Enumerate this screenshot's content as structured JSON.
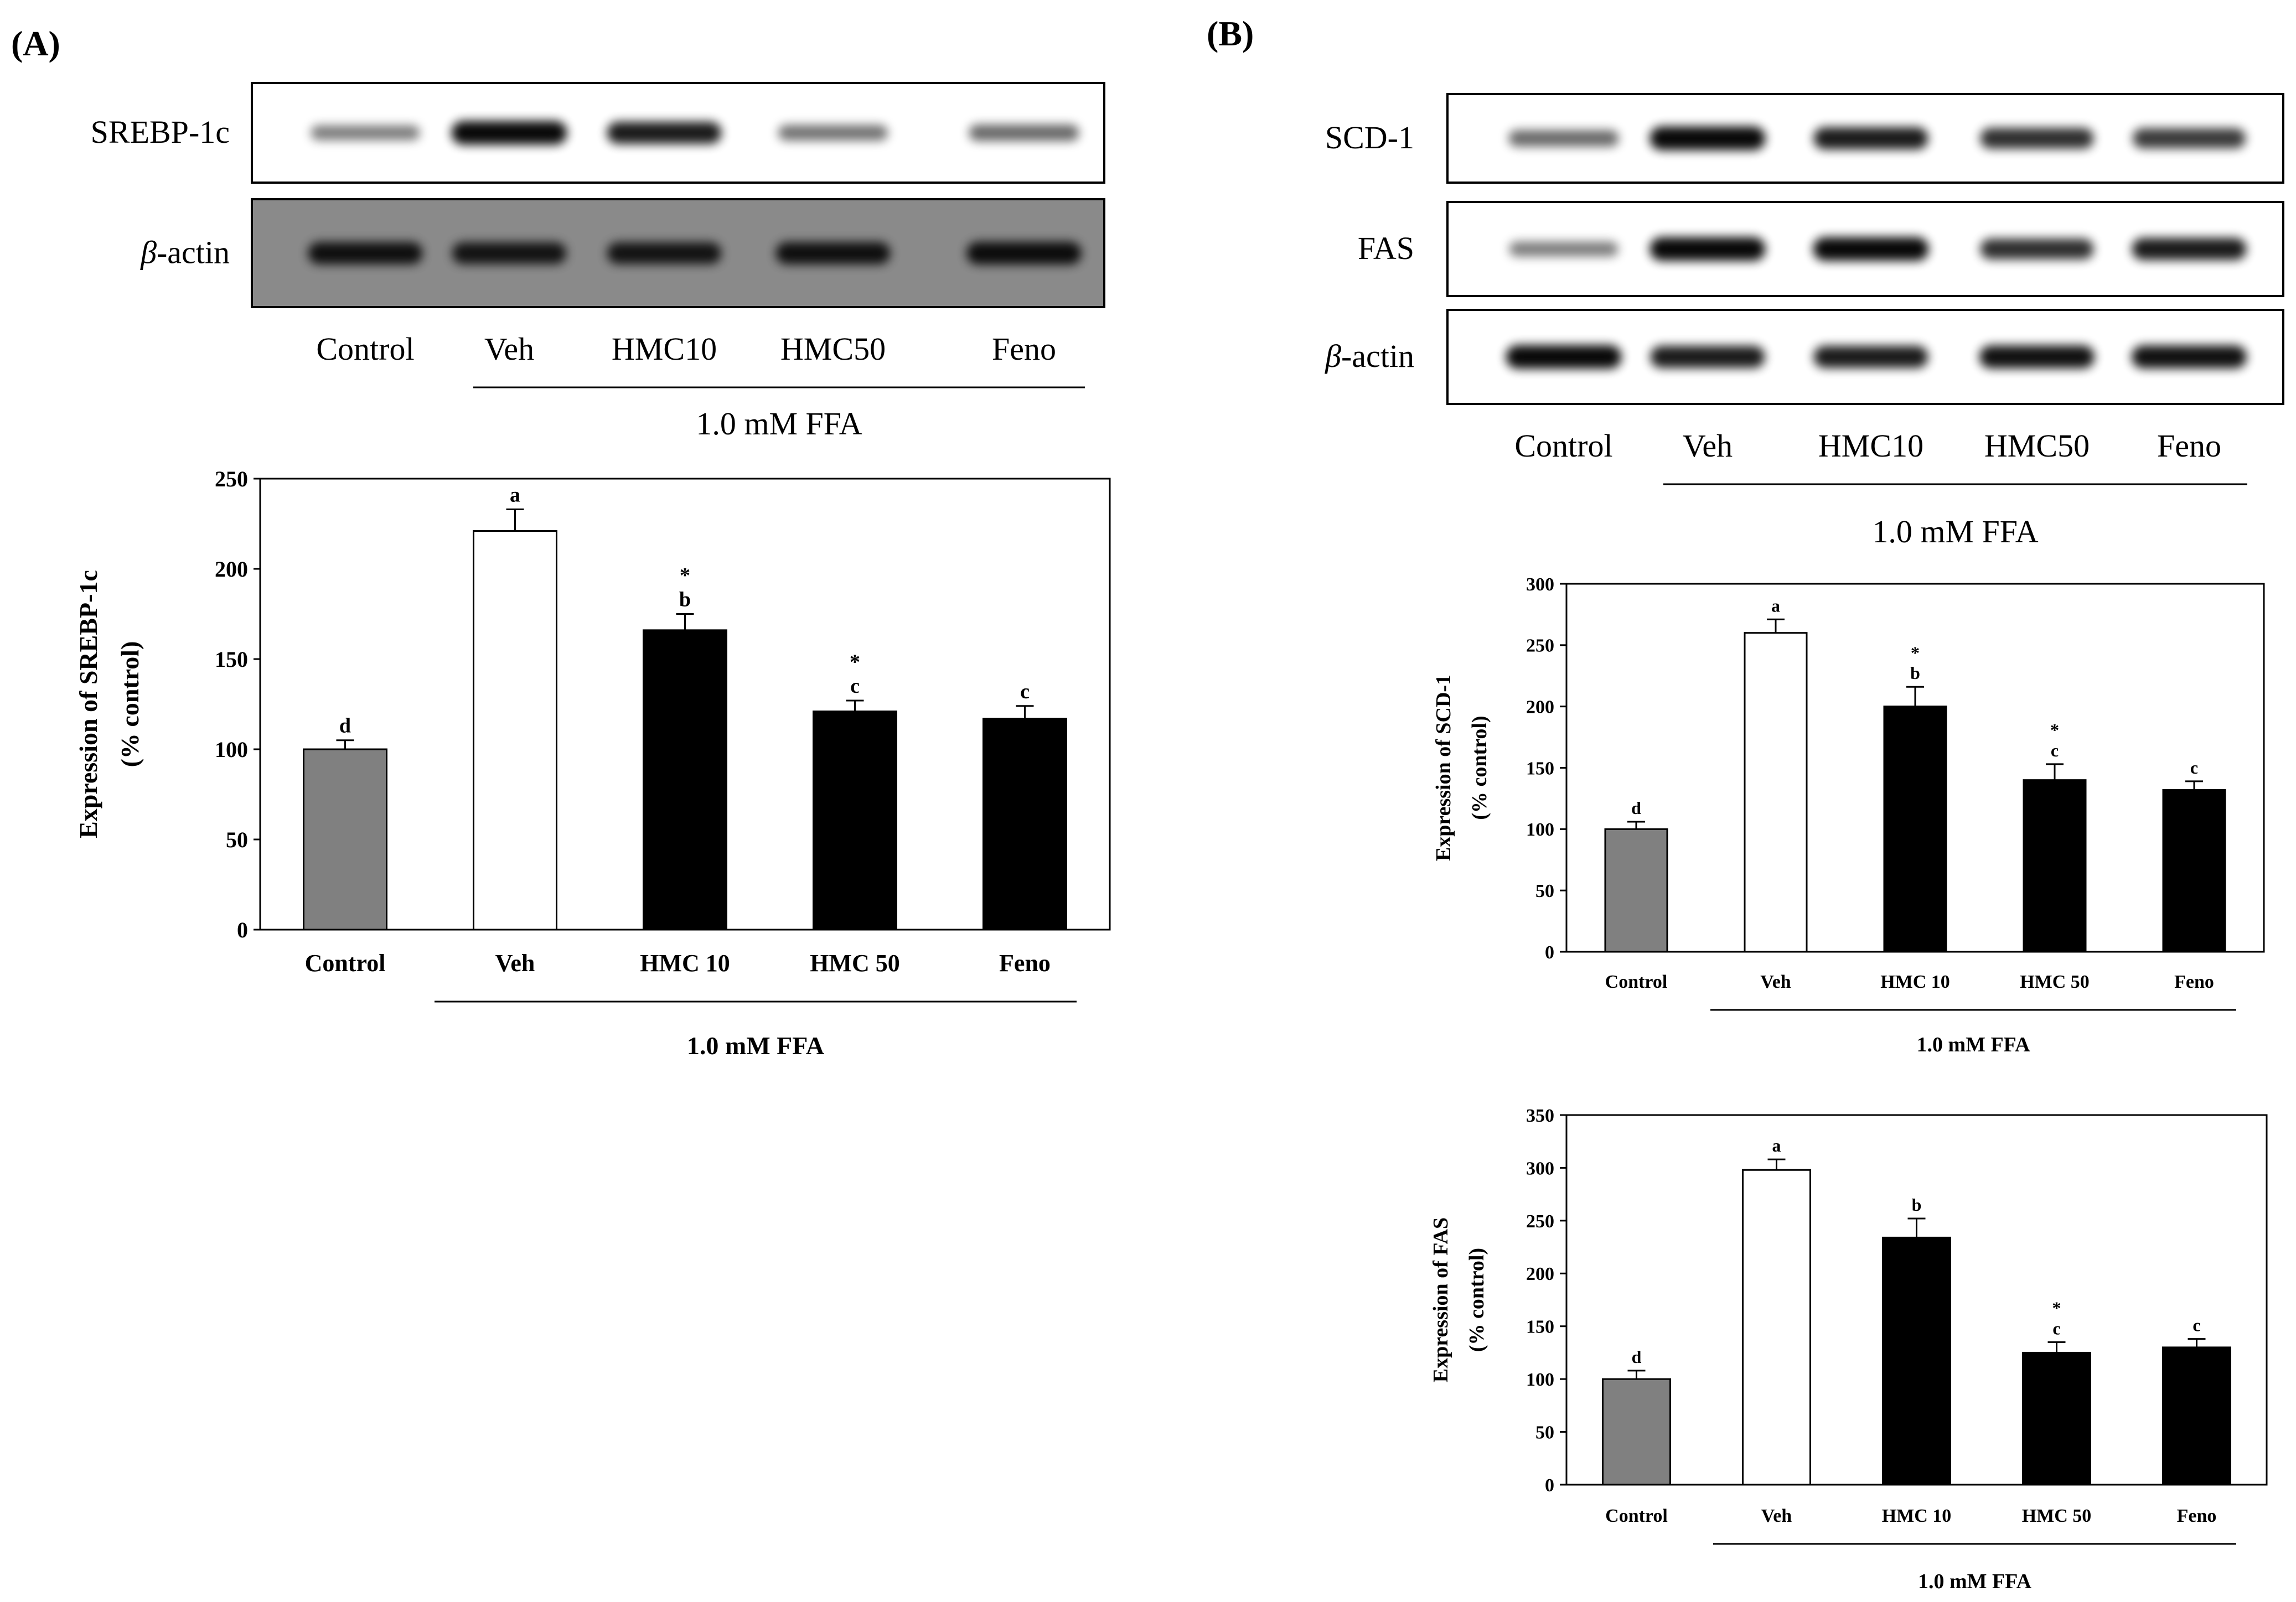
{
  "panels": [
    {
      "label": "(A)",
      "blot": {
        "rows": [
          {
            "label": "SREBP-1c",
            "italic_prefix": "",
            "intensity": [
              0.35,
              0.95,
              0.85,
              0.4,
              0.45
            ],
            "bg": "#ffffff"
          },
          {
            "label": "-actin",
            "italic_prefix": "β",
            "intensity": [
              0.85,
              0.82,
              0.82,
              0.85,
              0.88
            ],
            "bg": "#8a8a8a"
          }
        ],
        "lanes": [
          "Control",
          "Veh",
          "HMC10",
          "HMC50",
          "Feno"
        ],
        "group_label": "1.0 mM FFA"
      }
    },
    {
      "label": "(B)",
      "blot": {
        "rows": [
          {
            "label": "SCD-1",
            "italic_prefix": "",
            "intensity": [
              0.45,
              0.95,
              0.85,
              0.75,
              0.7
            ],
            "bg": "#ffffff"
          },
          {
            "label": "FAS",
            "italic_prefix": "",
            "intensity": [
              0.35,
              0.95,
              0.95,
              0.75,
              0.85
            ],
            "bg": "#ffffff"
          },
          {
            "label": "-actin",
            "italic_prefix": "β",
            "intensity": [
              0.95,
              0.85,
              0.85,
              0.9,
              0.9
            ],
            "bg": "#ffffff"
          }
        ],
        "lanes": [
          "Control",
          "Veh",
          "HMC10",
          "HMC50",
          "Feno"
        ],
        "group_label": "1.0 mM FFA"
      }
    }
  ],
  "chart_data": [
    {
      "type": "bar",
      "ylabel": "Expression of SREBP-1c",
      "ylabel2": "(% control)",
      "categories": [
        "Control",
        "Veh",
        "HMC 10",
        "HMC 50",
        "Feno"
      ],
      "values": [
        100,
        221,
        166,
        121,
        117
      ],
      "errors": [
        5,
        12,
        9,
        6,
        7
      ],
      "letters": [
        "d",
        "a",
        "b",
        "c",
        "c"
      ],
      "stars": [
        "",
        "",
        "*",
        "*",
        ""
      ],
      "colors": [
        "#808080",
        "#ffffff",
        "#000000",
        "#000000",
        "#000000"
      ],
      "ylim": [
        0,
        250
      ],
      "yticks": [
        0,
        50,
        100,
        150,
        200,
        250
      ],
      "group_label": "1.0 mM FFA"
    },
    {
      "type": "bar",
      "ylabel": "Expression of SCD-1",
      "ylabel2": "(% control)",
      "categories": [
        "Control",
        "Veh",
        "HMC 10",
        "HMC 50",
        "Feno"
      ],
      "values": [
        100,
        260,
        200,
        140,
        132
      ],
      "errors": [
        6,
        11,
        16,
        13,
        7
      ],
      "letters": [
        "d",
        "a",
        "b",
        "c",
        "c"
      ],
      "stars": [
        "",
        "",
        "*",
        "*",
        ""
      ],
      "colors": [
        "#808080",
        "#ffffff",
        "#000000",
        "#000000",
        "#000000"
      ],
      "ylim": [
        0,
        300
      ],
      "yticks": [
        0,
        50,
        100,
        150,
        200,
        250,
        300
      ],
      "group_label": "1.0 mM FFA"
    },
    {
      "type": "bar",
      "ylabel": "Expression of FAS",
      "ylabel2": "(% control)",
      "categories": [
        "Control",
        "Veh",
        "HMC 10",
        "HMC 50",
        "Feno"
      ],
      "values": [
        100,
        298,
        234,
        125,
        130
      ],
      "errors": [
        8,
        10,
        18,
        10,
        8
      ],
      "letters": [
        "d",
        "a",
        "b",
        "c",
        "c"
      ],
      "stars": [
        "",
        "",
        "",
        "*",
        ""
      ],
      "colors": [
        "#808080",
        "#ffffff",
        "#000000",
        "#000000",
        "#000000"
      ],
      "ylim": [
        0,
        350
      ],
      "yticks": [
        0,
        50,
        100,
        150,
        200,
        250,
        300,
        350
      ],
      "group_label": "1.0 mM FFA"
    }
  ]
}
